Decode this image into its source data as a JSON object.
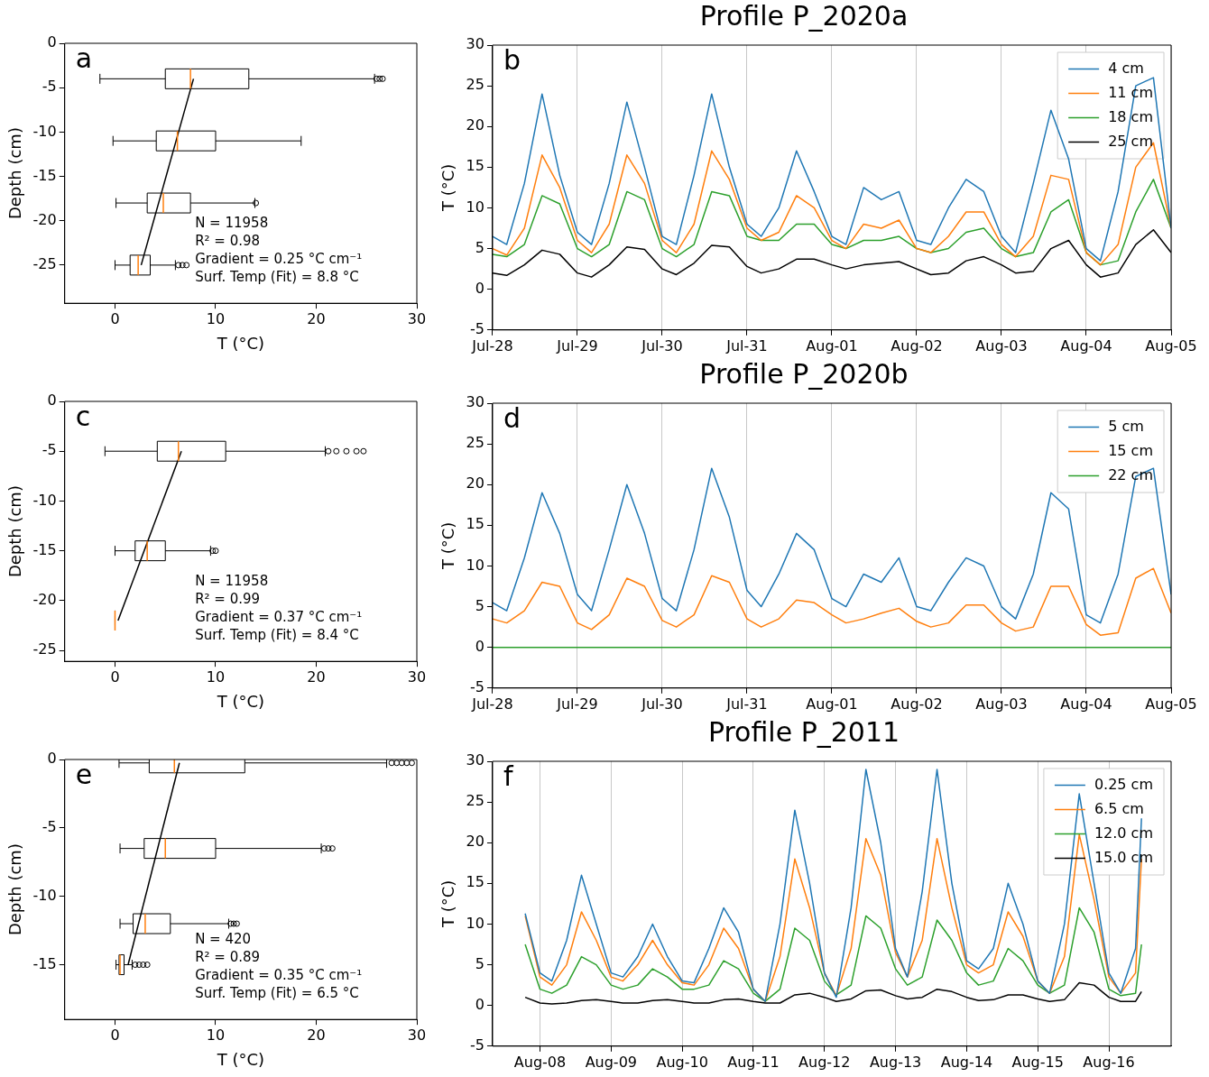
{
  "chart_data": [
    {
      "type": "box",
      "orientation": "horizontal",
      "xlabel": "T (°C)",
      "ylabel": "Depth (cm)",
      "xlim": [
        -5,
        30
      ],
      "xticks": [
        0,
        10,
        20,
        30
      ],
      "ylim": [
        -29.3,
        0
      ],
      "yticks": [
        0,
        -5,
        -10,
        -15,
        -20,
        -25
      ],
      "annotations": [
        "a",
        "N = 11958",
        "R² = 0.98",
        "Gradient = 0.25 °C cm⁻¹",
        "Surf. Temp (Fit) = 8.8 °C"
      ],
      "series": [
        {
          "type": "box",
          "color": "#000000",
          "x": [
            -4,
            -11,
            -18,
            -25
          ],
          "boxes": [
            {
              "low": -1.5,
              "q1": 5,
              "median": 7.5,
              "q3": 13.3,
              "high": 25.8,
              "outliers": [
                26,
                26.3,
                26.6
              ]
            },
            {
              "low": -0.2,
              "q1": 4.1,
              "median": 6.2,
              "q3": 10,
              "high": 18.5
            },
            {
              "low": 0.1,
              "q1": 3.2,
              "median": 4.8,
              "q3": 7.5,
              "high": 13.9,
              "outliers": [
                14
              ]
            },
            {
              "low": 0,
              "q1": 1.5,
              "median": 2.3,
              "q3": 3.5,
              "high": 6,
              "outliers": [
                6.3,
                6.7,
                7.1
              ]
            }
          ]
        },
        {
          "type": "line",
          "color": "#000000",
          "x": [
            -4,
            -25
          ],
          "values": [
            7.8,
            2.6
          ]
        }
      ]
    },
    {
      "type": "line",
      "title": "Profile P_2020a",
      "ylabel": "T (°C)",
      "xlim": [
        "2020-07-28",
        "2020-08-05"
      ],
      "xticks": [
        {
          "value": "2020-07-28",
          "label": "Jul-28"
        },
        {
          "value": "2020-07-29",
          "label": "Jul-29"
        },
        {
          "value": "2020-07-30",
          "label": "Jul-30"
        },
        {
          "value": "2020-07-31",
          "label": "Jul-31"
        },
        {
          "value": "2020-08-01",
          "label": "Aug-01"
        },
        {
          "value": "2020-08-02",
          "label": "Aug-02"
        },
        {
          "value": "2020-08-03",
          "label": "Aug-03"
        },
        {
          "value": "2020-08-04",
          "label": "Aug-04"
        },
        {
          "value": "2020-08-05",
          "label": "Aug-05"
        }
      ],
      "ylim": [
        -5,
        30
      ],
      "yticks": [
        -5,
        0,
        5,
        10,
        15,
        20,
        25,
        30
      ],
      "grid": "x",
      "legend": "top right",
      "annotations": [
        "b"
      ],
      "x": [
        "2020-07-28T00:00",
        "2020-07-28T04:00",
        "2020-07-28T09:00",
        "2020-07-28T14:00",
        "2020-07-28T19:00",
        "2020-07-29T00:00",
        "2020-07-29T04:00",
        "2020-07-29T09:00",
        "2020-07-29T14:00",
        "2020-07-29T19:00",
        "2020-07-30T00:00",
        "2020-07-30T04:00",
        "2020-07-30T09:00",
        "2020-07-30T14:00",
        "2020-07-30T19:00",
        "2020-07-31T00:00",
        "2020-07-31T04:00",
        "2020-07-31T09:00",
        "2020-07-31T14:00",
        "2020-07-31T19:00",
        "2020-08-01T00:00",
        "2020-08-01T04:00",
        "2020-08-01T09:00",
        "2020-08-01T14:00",
        "2020-08-01T19:00",
        "2020-08-02T00:00",
        "2020-08-02T04:00",
        "2020-08-02T09:00",
        "2020-08-02T14:00",
        "2020-08-02T19:00",
        "2020-08-03T00:00",
        "2020-08-03T04:00",
        "2020-08-03T09:00",
        "2020-08-03T14:00",
        "2020-08-03T19:00",
        "2020-08-04T00:00",
        "2020-08-04T04:00",
        "2020-08-04T09:00",
        "2020-08-04T14:00",
        "2020-08-04T19:00",
        "2020-08-05T00:00"
      ],
      "series": [
        {
          "name": "4 cm",
          "color": "#1f77b4",
          "values": [
            6.5,
            5.5,
            13,
            24,
            14,
            7,
            5.5,
            13,
            23,
            15,
            6.5,
            5.5,
            14,
            24,
            15,
            8,
            6.5,
            10,
            17,
            12,
            6.5,
            5.5,
            12.5,
            11,
            12,
            6,
            5.5,
            10,
            13.5,
            12,
            6.5,
            4.5,
            13,
            22,
            16,
            5,
            3.5,
            12,
            25,
            26,
            7.5
          ]
        },
        {
          "name": "11 cm",
          "color": "#ff7f0e",
          "values": [
            5,
            4.2,
            7.5,
            16.5,
            12.5,
            6,
            4.5,
            8,
            16.5,
            13,
            6,
            4.5,
            8,
            17,
            13.5,
            7.5,
            6,
            7,
            11.5,
            10,
            6,
            5,
            8,
            7.5,
            8.5,
            5,
            4.5,
            6.5,
            9.5,
            9.5,
            5.5,
            4,
            6.5,
            14,
            13.5,
            4.5,
            3,
            5.5,
            15,
            18,
            7.5
          ]
        },
        {
          "name": "18 cm",
          "color": "#2ca02c",
          "values": [
            4.3,
            4,
            5.5,
            11.5,
            10.5,
            5,
            4,
            5.5,
            12,
            11,
            5,
            4,
            5.5,
            12,
            11.5,
            6.5,
            6,
            6,
            8,
            8,
            5.5,
            5,
            6,
            6,
            6.5,
            5,
            4.5,
            5,
            7,
            7.5,
            5,
            4,
            4.5,
            9.5,
            11,
            4.5,
            3,
            3.5,
            9.5,
            13.5,
            7.5
          ]
        },
        {
          "name": "25 cm",
          "color": "#000000",
          "values": [
            2,
            1.7,
            3,
            4.8,
            4.3,
            2,
            1.5,
            3,
            5.2,
            4.9,
            2.5,
            1.8,
            3.2,
            5.4,
            5.2,
            2.8,
            2,
            2.5,
            3.7,
            3.7,
            3,
            2.5,
            3,
            3.2,
            3.4,
            2.5,
            1.8,
            2,
            3.5,
            4,
            3,
            2,
            2.2,
            5,
            6,
            3,
            1.5,
            2,
            5.5,
            7.3,
            4.5
          ]
        }
      ]
    },
    {
      "type": "box",
      "orientation": "horizontal",
      "xlabel": "T (°C)",
      "ylabel": "Depth (cm)",
      "xlim": [
        -5,
        30
      ],
      "xticks": [
        0,
        10,
        20,
        30
      ],
      "ylim": [
        -26.1,
        0
      ],
      "yticks": [
        0,
        -5,
        -10,
        -15,
        -20,
        -25
      ],
      "annotations": [
        "c",
        "N = 11958",
        "R² = 0.99",
        "Gradient = 0.37 °C cm⁻¹",
        "Surf. Temp (Fit) = 8.4 °C"
      ],
      "series": [
        {
          "type": "box",
          "color": "#000000",
          "x": [
            -5,
            -15,
            -22
          ],
          "boxes": [
            {
              "low": -1,
              "q1": 4.2,
              "median": 6.3,
              "q3": 11,
              "high": 20.9,
              "outliers": [
                21.2,
                22,
                23,
                24,
                24.7
              ]
            },
            {
              "low": 0,
              "q1": 2,
              "median": 3.2,
              "q3": 5,
              "high": 9.5,
              "outliers": [
                9.7,
                10
              ]
            },
            {
              "low": 0,
              "q1": 0,
              "median": 0,
              "q3": 0,
              "high": 0
            }
          ]
        },
        {
          "type": "line",
          "color": "#000000",
          "x": [
            -5,
            -22
          ],
          "values": [
            6.6,
            0.3
          ]
        }
      ]
    },
    {
      "type": "line",
      "title": "Profile P_2020b",
      "ylabel": "T (°C)",
      "xlim": [
        "2020-07-28",
        "2020-08-05"
      ],
      "xticks": [
        {
          "value": "2020-07-28",
          "label": "Jul-28"
        },
        {
          "value": "2020-07-29",
          "label": "Jul-29"
        },
        {
          "value": "2020-07-30",
          "label": "Jul-30"
        },
        {
          "value": "2020-07-31",
          "label": "Jul-31"
        },
        {
          "value": "2020-08-01",
          "label": "Aug-01"
        },
        {
          "value": "2020-08-02",
          "label": "Aug-02"
        },
        {
          "value": "2020-08-03",
          "label": "Aug-03"
        },
        {
          "value": "2020-08-04",
          "label": "Aug-04"
        },
        {
          "value": "2020-08-05",
          "label": "Aug-05"
        }
      ],
      "ylim": [
        -5,
        30
      ],
      "yticks": [
        -5,
        0,
        5,
        10,
        15,
        20,
        25,
        30
      ],
      "grid": "x",
      "legend": "top right",
      "annotations": [
        "d"
      ],
      "x": [
        "2020-07-28T00:00",
        "2020-07-28T04:00",
        "2020-07-28T09:00",
        "2020-07-28T14:00",
        "2020-07-28T19:00",
        "2020-07-29T00:00",
        "2020-07-29T04:00",
        "2020-07-29T09:00",
        "2020-07-29T14:00",
        "2020-07-29T19:00",
        "2020-07-30T00:00",
        "2020-07-30T04:00",
        "2020-07-30T09:00",
        "2020-07-30T14:00",
        "2020-07-30T19:00",
        "2020-07-31T00:00",
        "2020-07-31T04:00",
        "2020-07-31T09:00",
        "2020-07-31T14:00",
        "2020-07-31T19:00",
        "2020-08-01T00:00",
        "2020-08-01T04:00",
        "2020-08-01T09:00",
        "2020-08-01T14:00",
        "2020-08-01T19:00",
        "2020-08-02T00:00",
        "2020-08-02T04:00",
        "2020-08-02T09:00",
        "2020-08-02T14:00",
        "2020-08-02T19:00",
        "2020-08-03T00:00",
        "2020-08-03T04:00",
        "2020-08-03T09:00",
        "2020-08-03T14:00",
        "2020-08-03T19:00",
        "2020-08-04T00:00",
        "2020-08-04T04:00",
        "2020-08-04T09:00",
        "2020-08-04T14:00",
        "2020-08-04T19:00",
        "2020-08-05T00:00"
      ],
      "series": [
        {
          "name": "5 cm",
          "color": "#1f77b4",
          "values": [
            5.5,
            4.5,
            11,
            19,
            14,
            6.5,
            4.5,
            12,
            20,
            14,
            6,
            4.5,
            12,
            22,
            16,
            7,
            5,
            9,
            14,
            12,
            6,
            5,
            9,
            8,
            11,
            5,
            4.5,
            8,
            11,
            10,
            5,
            3.5,
            9,
            19,
            17,
            4,
            3,
            9,
            21,
            22,
            6.5
          ]
        },
        {
          "name": "15 cm",
          "color": "#ff7f0e",
          "values": [
            3.5,
            3,
            4.5,
            8,
            7.5,
            3,
            2.2,
            4,
            8.5,
            7.5,
            3.3,
            2.5,
            4,
            8.8,
            8,
            3.5,
            2.5,
            3.5,
            5.8,
            5.5,
            4,
            3,
            3.5,
            4.2,
            4.8,
            3.2,
            2.5,
            3,
            5.2,
            5.2,
            3,
            2,
            2.5,
            7.5,
            7.5,
            2.8,
            1.5,
            1.8,
            8.5,
            9.7,
            4.2
          ]
        },
        {
          "name": "22 cm",
          "color": "#2ca02c",
          "values": [
            0,
            0,
            0,
            0,
            0,
            0,
            0,
            0,
            0,
            0,
            0,
            0,
            0,
            0,
            0,
            0,
            0,
            0,
            0,
            0,
            0,
            0,
            0,
            0,
            0,
            0,
            0,
            0,
            0,
            0,
            0,
            0,
            0,
            0,
            0,
            0,
            0,
            0,
            0,
            0,
            0
          ]
        }
      ]
    },
    {
      "type": "box",
      "orientation": "horizontal",
      "xlabel": "T (°C)",
      "ylabel": "Depth (cm)",
      "xlim": [
        -5,
        30
      ],
      "xticks": [
        0,
        10,
        20,
        30
      ],
      "ylim": [
        -19,
        0
      ],
      "yticks": [
        0,
        -5,
        -10,
        -15
      ],
      "annotations": [
        "e",
        "N = 420",
        "R² = 0.89",
        "Gradient = 0.35 °C cm⁻¹",
        "Surf. Temp (Fit) = 6.5 °C"
      ],
      "series": [
        {
          "type": "box",
          "color": "#000000",
          "x": [
            -0.25,
            -6.5,
            -12,
            -15
          ],
          "boxes": [
            {
              "low": 0.4,
              "q1": 3.4,
              "median": 5.9,
              "q3": 12.9,
              "high": 27,
              "outliers": [
                27.5,
                28,
                28.5,
                29,
                29.5
              ]
            },
            {
              "low": 0.5,
              "q1": 2.9,
              "median": 5,
              "q3": 10,
              "high": 20.5,
              "outliers": [
                20.8,
                21.2,
                21.6
              ]
            },
            {
              "low": 0.5,
              "q1": 1.8,
              "median": 3,
              "q3": 5.5,
              "high": 11.3,
              "outliers": [
                11.5,
                11.8,
                12.1
              ]
            },
            {
              "low": 0.1,
              "q1": 0.4,
              "median": 0.5,
              "q3": 0.9,
              "high": 1.7,
              "outliers": [
                2,
                2.4,
                2.8,
                3.2
              ]
            }
          ]
        },
        {
          "type": "line",
          "color": "#000000",
          "x": [
            -0.25,
            -15
          ],
          "values": [
            6.4,
            1.3
          ]
        }
      ]
    },
    {
      "type": "line",
      "title": "Profile P_2011",
      "ylabel": "T (°C)",
      "xlim": [
        "2011-08-07T08:00",
        "2011-08-16T21:00"
      ],
      "xticks": [
        {
          "value": "2011-08-08",
          "label": "Aug-08"
        },
        {
          "value": "2011-08-09",
          "label": "Aug-09"
        },
        {
          "value": "2011-08-10",
          "label": "Aug-10"
        },
        {
          "value": "2011-08-11",
          "label": "Aug-11"
        },
        {
          "value": "2011-08-12",
          "label": "Aug-12"
        },
        {
          "value": "2011-08-13",
          "label": "Aug-13"
        },
        {
          "value": "2011-08-14",
          "label": "Aug-14"
        },
        {
          "value": "2011-08-15",
          "label": "Aug-15"
        },
        {
          "value": "2011-08-16",
          "label": "Aug-16"
        }
      ],
      "ylim": [
        -5,
        30
      ],
      "yticks": [
        -5,
        0,
        5,
        10,
        15,
        20,
        25,
        30
      ],
      "grid": "x",
      "legend": "top right",
      "annotations": [
        "f"
      ],
      "x": [
        "2011-08-07T19:00",
        "2011-08-08T00:00",
        "2011-08-08T04:00",
        "2011-08-08T09:00",
        "2011-08-08T14:00",
        "2011-08-08T19:00",
        "2011-08-09T00:00",
        "2011-08-09T04:00",
        "2011-08-09T09:00",
        "2011-08-09T14:00",
        "2011-08-09T19:00",
        "2011-08-10T00:00",
        "2011-08-10T04:00",
        "2011-08-10T09:00",
        "2011-08-10T14:00",
        "2011-08-10T19:00",
        "2011-08-11T00:00",
        "2011-08-11T04:00",
        "2011-08-11T09:00",
        "2011-08-11T14:00",
        "2011-08-11T19:00",
        "2011-08-12T00:00",
        "2011-08-12T04:00",
        "2011-08-12T09:00",
        "2011-08-12T14:00",
        "2011-08-12T19:00",
        "2011-08-13T00:00",
        "2011-08-13T04:00",
        "2011-08-13T09:00",
        "2011-08-13T14:00",
        "2011-08-13T19:00",
        "2011-08-14T00:00",
        "2011-08-14T04:00",
        "2011-08-14T09:00",
        "2011-08-14T14:00",
        "2011-08-14T19:00",
        "2011-08-15T00:00",
        "2011-08-15T04:00",
        "2011-08-15T09:00",
        "2011-08-15T14:00",
        "2011-08-15T19:00",
        "2011-08-16T00:00",
        "2011-08-16T04:00",
        "2011-08-16T09:00",
        "2011-08-16T11:00"
      ],
      "series": [
        {
          "name": "0.25 cm",
          "color": "#1f77b4",
          "values": [
            11.3,
            4,
            3,
            8,
            16,
            10,
            4,
            3.5,
            6,
            10,
            6,
            3,
            2.8,
            7,
            12,
            9,
            2,
            0.5,
            10,
            24,
            15,
            4,
            1,
            12,
            29,
            20,
            7,
            3.5,
            14,
            29,
            15,
            5.5,
            4.5,
            7,
            15,
            10,
            3,
            1.5,
            10,
            26,
            15,
            4,
            1.5,
            7,
            23
          ]
        },
        {
          "name": "6.5 cm",
          "color": "#ff7f0e",
          "values": [
            11,
            3.5,
            2.5,
            5,
            11.5,
            8,
            3.5,
            3,
            5,
            8,
            5,
            2.8,
            2.5,
            5,
            9.5,
            7,
            2,
            0.5,
            6,
            18,
            12,
            4,
            1.2,
            7,
            20.5,
            16,
            6.5,
            3.5,
            8,
            20.5,
            12,
            5,
            4,
            5,
            11.5,
            8.5,
            3,
            1.5,
            6,
            21,
            13,
            3.5,
            1.5,
            4,
            18
          ]
        },
        {
          "name": "12.0 cm",
          "color": "#2ca02c",
          "values": [
            7.5,
            2,
            1.5,
            2.5,
            6,
            5,
            2.5,
            2,
            2.5,
            4.5,
            3.5,
            2,
            2,
            2.5,
            5.5,
            4.5,
            1.5,
            0.5,
            2,
            9.5,
            8,
            3,
            1.3,
            2.5,
            11,
            9.5,
            4.5,
            2.5,
            3.5,
            10.5,
            8,
            4,
            2.5,
            3,
            7,
            5.5,
            2.5,
            1.5,
            2.5,
            12,
            9,
            2,
            1.2,
            1.5,
            7.5
          ]
        },
        {
          "name": "15.0 cm",
          "color": "#000000",
          "values": [
            1,
            0.3,
            0.2,
            0.3,
            0.6,
            0.7,
            0.5,
            0.3,
            0.3,
            0.6,
            0.7,
            0.5,
            0.3,
            0.3,
            0.7,
            0.8,
            0.5,
            0.3,
            0.3,
            1.3,
            1.5,
            1,
            0.5,
            0.8,
            1.8,
            1.9,
            1.2,
            0.8,
            1,
            2,
            1.7,
            1,
            0.6,
            0.7,
            1.3,
            1.3,
            0.8,
            0.5,
            0.7,
            2.8,
            2.5,
            1,
            0.5,
            0.5,
            1.7
          ]
        }
      ]
    }
  ]
}
